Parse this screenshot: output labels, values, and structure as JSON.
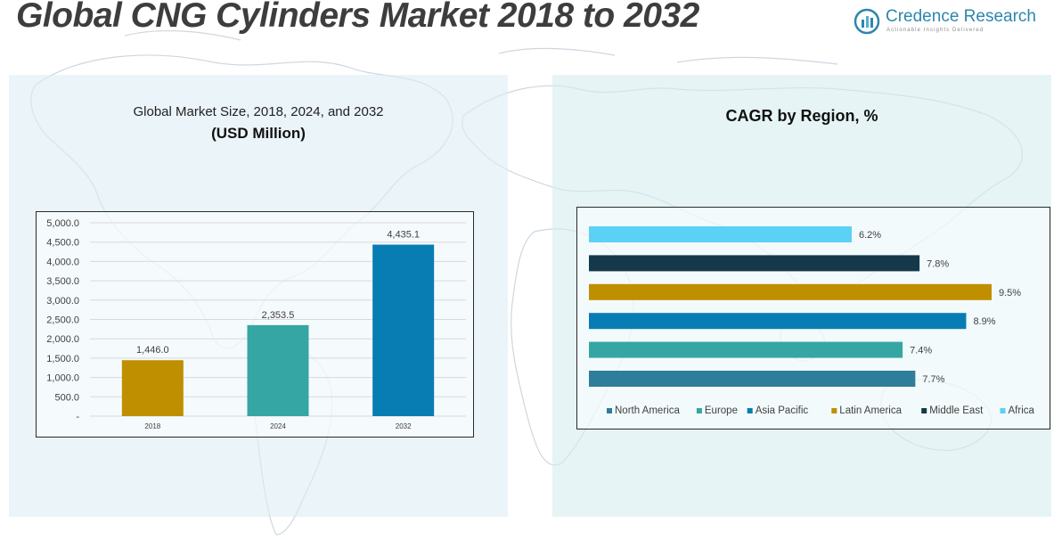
{
  "header": {
    "title": "Global CNG Cylinders Market 2018 to 2032",
    "logo": {
      "name": "Credence Research",
      "tagline": "Actionable Insights Delivered"
    }
  },
  "left_panel": {
    "title": "Global Market Size, 2018, 2024, and 2032",
    "subtitle": "(USD Million)"
  },
  "right_panel": {
    "title": "CAGR by Region, %"
  },
  "chart_data": [
    {
      "type": "bar",
      "title": "Global Market Size, 2018, 2024, and 2032",
      "subtitle": "(USD Million)",
      "categories": [
        "2018",
        "2024",
        "2032"
      ],
      "values": [
        1446.0,
        2353.5,
        4435.1
      ],
      "value_labels": [
        "1,446.0",
        "2,353.5",
        "4,435.1"
      ],
      "colors": [
        "#bf8f00",
        "#35a6a3",
        "#087db3"
      ],
      "ylim": [
        0,
        5000
      ],
      "yticks": [
        0,
        500,
        1000,
        1500,
        2000,
        2500,
        3000,
        3500,
        4000,
        4500,
        5000
      ],
      "ytick_labels": [
        "-",
        "500.0",
        "1,000.0",
        "1,500.0",
        "2,000.0",
        "2,500.0",
        "3,000.0",
        "3,500.0",
        "4,000.0",
        "4,500.0",
        "5,000.0"
      ],
      "grid": true
    },
    {
      "type": "bar",
      "orientation": "horizontal",
      "title": "CAGR by Region, %",
      "categories": [
        "North America",
        "Europe",
        "Asia Pacific",
        "Latin America",
        "Middle East",
        "Africa"
      ],
      "values": [
        7.7,
        7.4,
        8.9,
        9.5,
        7.8,
        6.2
      ],
      "value_labels": [
        "7.7%",
        "7.4%",
        "8.9%",
        "9.5%",
        "7.8%",
        "6.2%"
      ],
      "colors": [
        "#2e7d9a",
        "#35a6a3",
        "#087db3",
        "#bf8f00",
        "#15394a",
        "#5cd1f6"
      ],
      "xlim": [
        0,
        9.5
      ],
      "legend": "bottom",
      "grid": false
    }
  ]
}
